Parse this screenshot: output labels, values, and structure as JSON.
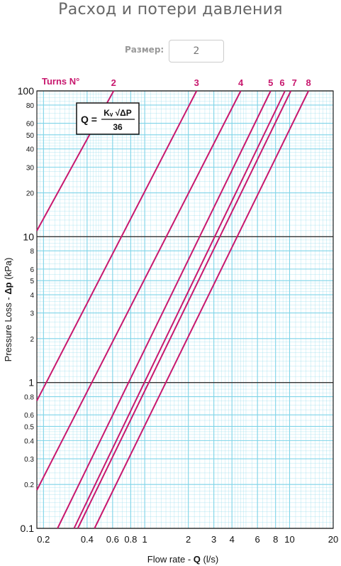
{
  "page": {
    "title": "Расход и потери давления",
    "size_label": "Размер:",
    "size_value": "2"
  },
  "chart_data": {
    "type": "line",
    "scale": "log-log",
    "grid": true,
    "xlabel_prefix": "Flow rate - ",
    "xlabel_bold": "Q",
    "xlabel_unit": " (l/s)",
    "ylabel_prefix": "Pressure Loss  - ",
    "ylabel_bold": "Δp",
    "ylabel_unit": " (kPa)",
    "xlim": [
      0.18,
      20
    ],
    "ylim": [
      0.1,
      100
    ],
    "x_ticks": [
      {
        "value": 0.2,
        "label": "0.2"
      },
      {
        "value": 0.4,
        "label": "0.4"
      },
      {
        "value": 0.6,
        "label": "0.6"
      },
      {
        "value": 0.8,
        "label": "0.8"
      },
      {
        "value": 1,
        "label": "1"
      },
      {
        "value": 2,
        "label": "2"
      },
      {
        "value": 3,
        "label": "3"
      },
      {
        "value": 4,
        "label": "4"
      },
      {
        "value": 6,
        "label": "6"
      },
      {
        "value": 8,
        "label": "8"
      },
      {
        "value": 10,
        "label": "10"
      },
      {
        "value": 20,
        "label": "20"
      }
    ],
    "y_ticks": [
      {
        "value": 0.1,
        "label": "0.1",
        "major": true
      },
      {
        "value": 0.2,
        "label": "0.2"
      },
      {
        "value": 0.3,
        "label": "0.3"
      },
      {
        "value": 0.4,
        "label": "0.4"
      },
      {
        "value": 0.5,
        "label": "0.5"
      },
      {
        "value": 0.6,
        "label": "0.6"
      },
      {
        "value": 0.8,
        "label": "0.8"
      },
      {
        "value": 1,
        "label": "1",
        "major": true
      },
      {
        "value": 2,
        "label": "2"
      },
      {
        "value": 3,
        "label": "3"
      },
      {
        "value": 4,
        "label": "4"
      },
      {
        "value": 5,
        "label": "5"
      },
      {
        "value": 6,
        "label": "6"
      },
      {
        "value": 8,
        "label": "8"
      },
      {
        "value": 10,
        "label": "10",
        "major": true
      },
      {
        "value": 20,
        "label": "20"
      },
      {
        "value": 30,
        "label": "30"
      },
      {
        "value": 40,
        "label": "40"
      },
      {
        "value": 50,
        "label": "50"
      },
      {
        "value": 60,
        "label": "60"
      },
      {
        "value": 80,
        "label": "80"
      },
      {
        "value": 100,
        "label": "100",
        "major": true
      }
    ],
    "legend_title": "Turns N°",
    "formula": {
      "lhs": "Q =",
      "numerator": "Kᵥ √ΔP",
      "denominator": "36"
    },
    "series": [
      {
        "name": "2",
        "points": [
          [
            0.18,
            11.0
          ],
          [
            0.61,
            100
          ]
        ]
      },
      {
        "name": "3",
        "points": [
          [
            0.18,
            0.75
          ],
          [
            2.28,
            100
          ]
        ]
      },
      {
        "name": "4",
        "points": [
          [
            0.18,
            0.183
          ],
          [
            4.6,
            100
          ]
        ]
      },
      {
        "name": "5",
        "points": [
          [
            0.25,
            0.1
          ],
          [
            7.4,
            100
          ]
        ]
      },
      {
        "name": "6",
        "points": [
          [
            0.325,
            0.1
          ],
          [
            9.3,
            100
          ]
        ]
      },
      {
        "name": "7",
        "points": [
          [
            0.345,
            0.1
          ],
          [
            10.2,
            100
          ]
        ]
      },
      {
        "name": "8",
        "points": [
          [
            0.45,
            0.1
          ],
          [
            13.5,
            100
          ]
        ]
      }
    ],
    "colors": {
      "grid": "#7fd4e8",
      "line": "#c8186e",
      "axis": "#222222"
    }
  }
}
